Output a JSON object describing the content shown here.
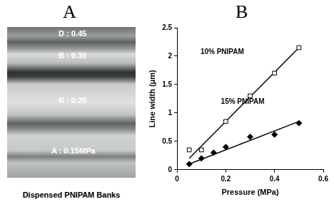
{
  "panels": {
    "a": {
      "label": "A",
      "caption": "Dispensed PNIPAM Banks",
      "bands": [
        "D : 0.45",
        "B : 0.30",
        "B : 0.20",
        "A : 0.15MPa"
      ]
    },
    "b": {
      "label": "B"
    }
  },
  "chart_data": {
    "type": "scatter",
    "x_label": "Pressure (MPa)",
    "y_label": "Line width (μm)",
    "xlim": [
      0,
      0.6
    ],
    "xticks": [
      0,
      0.2,
      0.4,
      0.6
    ],
    "ylim": [
      0,
      2.5
    ],
    "yticks": [
      0,
      0.5,
      1,
      1.5,
      2,
      2.5
    ],
    "grid": false,
    "series": [
      {
        "name": "10% PNIPAM",
        "color": "#000000",
        "marker": "square_open",
        "line_style": "solid",
        "x": [
          0.05,
          0.1,
          0.2,
          0.3,
          0.4,
          0.5
        ],
        "values": [
          0.35,
          0.35,
          0.85,
          1.3,
          1.7,
          2.15
        ],
        "fit": {
          "x": [
            0.05,
            0.5
          ],
          "values": [
            0.2,
            2.15
          ]
        }
      },
      {
        "name": "15% PNIPAM",
        "color": "#000000",
        "marker": "diamond",
        "line_style": "solid",
        "x": [
          0.05,
          0.1,
          0.15,
          0.2,
          0.3,
          0.4,
          0.5
        ],
        "values": [
          0.1,
          0.2,
          0.3,
          0.4,
          0.58,
          0.62,
          0.82
        ],
        "fit": {
          "x": [
            0.05,
            0.5
          ],
          "values": [
            0.1,
            0.85
          ]
        }
      }
    ]
  }
}
